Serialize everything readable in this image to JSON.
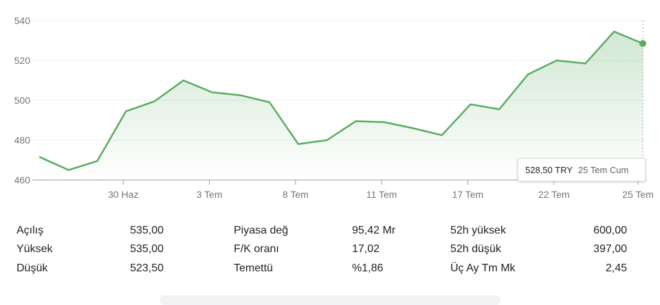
{
  "chart_data": {
    "type": "area",
    "y_ticks": [
      460,
      480,
      500,
      520,
      540
    ],
    "ylim": [
      460,
      540
    ],
    "x_tick_labels": [
      "30 Haz",
      "3 Tem",
      "8 Tem",
      "11 Tem",
      "17 Tem",
      "22 Tem",
      "25 Tem"
    ],
    "series": [
      {
        "values": [
          471.5,
          465.0,
          469.5,
          494.5,
          499.5,
          510.0,
          504.0,
          502.5,
          499.0,
          478.0,
          480.0,
          489.5,
          489.0,
          486.0,
          482.5,
          498.0,
          495.5,
          513.0,
          520.0,
          518.5,
          534.5,
          528.5
        ]
      }
    ],
    "line_color": "#5aab61",
    "area_color": "#5aab61",
    "grid": true
  },
  "tooltip": {
    "price": "528,50 TRY",
    "date": "25 Tem Cum"
  },
  "stats": [
    {
      "label": "Açılış",
      "value": "535,00"
    },
    {
      "label": "Yüksek",
      "value": "535,00"
    },
    {
      "label": "Düşük",
      "value": "523,50"
    },
    {
      "label": "Piyasa değ",
      "value": "95,42 Mr"
    },
    {
      "label": "F/K oranı",
      "value": "17,02"
    },
    {
      "label": "Temettü",
      "value": "%1,86"
    },
    {
      "label": "52h yüksek",
      "value": "600,00"
    },
    {
      "label": "52h düşük",
      "value": "397,00"
    },
    {
      "label": "Üç Ay Tm Mk",
      "value": "2,45"
    }
  ]
}
